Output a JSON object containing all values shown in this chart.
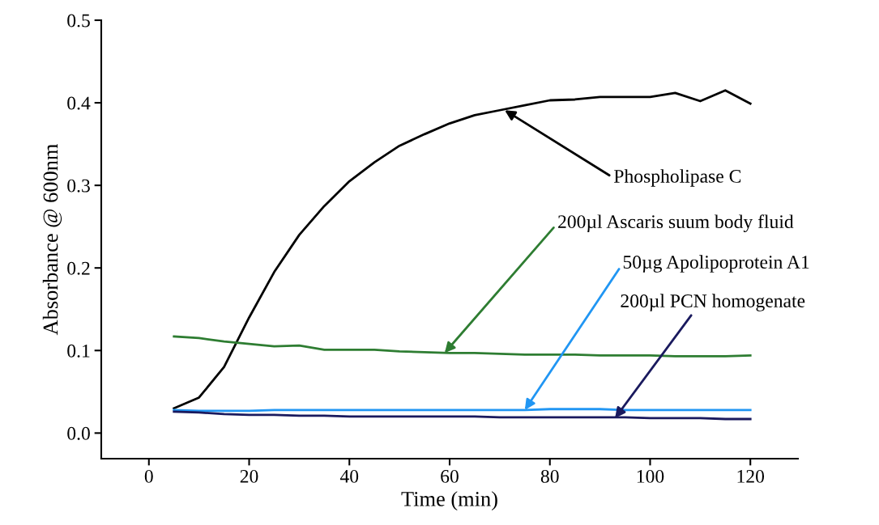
{
  "chart_data": {
    "type": "line",
    "xlabel": "Time (min)",
    "ylabel": "Absorbance @ 600nm",
    "x": [
      5,
      10,
      15,
      20,
      25,
      30,
      35,
      40,
      45,
      50,
      55,
      60,
      65,
      70,
      75,
      80,
      85,
      90,
      95,
      100,
      105,
      110,
      115,
      120
    ],
    "series": [
      {
        "color": "#000000",
        "values": [
          0.03,
          0.043,
          0.08,
          0.14,
          0.195,
          0.24,
          0.275,
          0.305,
          0.328,
          0.348,
          0.362,
          0.375,
          0.385,
          0.391,
          0.397,
          0.403,
          0.404,
          0.407,
          0.407,
          0.407,
          0.412,
          0.402,
          0.415,
          0.399
        ]
      },
      {
        "color": "#2e7d32",
        "values": [
          0.117,
          0.115,
          0.111,
          0.108,
          0.105,
          0.106,
          0.101,
          0.101,
          0.101,
          0.099,
          0.098,
          0.097,
          0.097,
          0.096,
          0.095,
          0.095,
          0.095,
          0.094,
          0.094,
          0.094,
          0.093,
          0.093,
          0.093,
          0.094
        ]
      },
      {
        "color": "#2196f3",
        "values": [
          0.028,
          0.027,
          0.027,
          0.027,
          0.028,
          0.028,
          0.028,
          0.028,
          0.028,
          0.028,
          0.028,
          0.028,
          0.028,
          0.028,
          0.028,
          0.029,
          0.029,
          0.029,
          0.028,
          0.028,
          0.028,
          0.028,
          0.028,
          0.028
        ]
      },
      {
        "color": "#1a1a5e",
        "values": [
          0.026,
          0.025,
          0.023,
          0.022,
          0.022,
          0.021,
          0.021,
          0.02,
          0.02,
          0.02,
          0.02,
          0.02,
          0.02,
          0.019,
          0.019,
          0.019,
          0.019,
          0.019,
          0.019,
          0.018,
          0.018,
          0.018,
          0.017,
          0.017
        ]
      }
    ],
    "annotations": [
      {
        "text": "Phospholipase C",
        "x": 71,
        "y": 0.391
      },
      {
        "text": "200µl Ascaris suum body fluid",
        "x": 59,
        "y": 0.097
      },
      {
        "text": "50µg Apolipoprotein A1",
        "x": 75,
        "y": 0.028
      },
      {
        "text": "200µl PCN homogenate",
        "x": 93,
        "y": 0.018
      }
    ],
    "xlim": [
      -9.5,
      129.5
    ],
    "ylim": [
      -0.031,
      0.5
    ],
    "xticks": [
      0,
      20,
      40,
      60,
      80,
      100,
      120
    ],
    "yticks": [
      {
        "value": 0,
        "label": "0.0"
      },
      0.1,
      0.2,
      0.3,
      0.4,
      0.5
    ],
    "grid": false,
    "legend": false
  }
}
